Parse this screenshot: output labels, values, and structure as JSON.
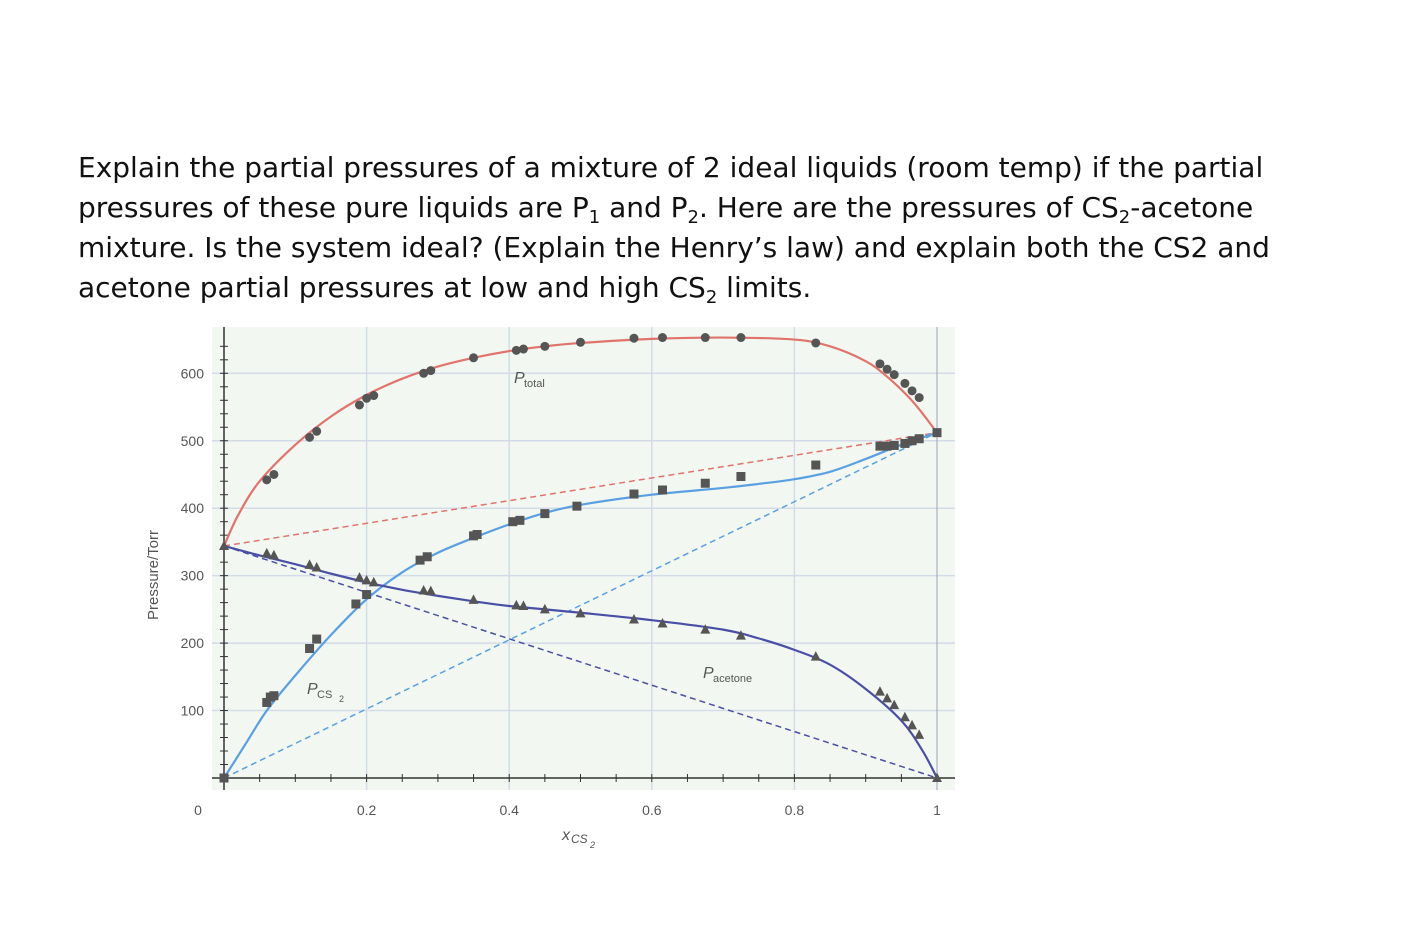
{
  "question": {
    "l1a": "Explain the partial pressures of a mixture of 2 ideal liquids (room temp) if the partial",
    "l2a": "pressures of these pure liquids are P",
    "l2s1": "1",
    "l2b": " and P",
    "l2s2": "2",
    "l2c": ".  Here are the pressures of CS",
    "l2s3": "2",
    "l2d": "-acetone",
    "l3": "mixture. Is the system ideal? (Explain the Henry’s law) and explain both the CS2 and",
    "l4a": "acetone partial pressures at low and high CS",
    "l4s": "2",
    "l4b": " limits."
  },
  "chart_data": {
    "type": "scatter",
    "xlabel": {
      "main": "x",
      "sub": "CS",
      "subsub": "2"
    },
    "ylabel": "Pressure/Torr",
    "xlim": [
      0,
      1
    ],
    "ylim": [
      0,
      650
    ],
    "x_ticks": [
      "0",
      "0.2",
      "0.4",
      "0.6",
      "0.8",
      "1"
    ],
    "x_tick_values": [
      0,
      0.2,
      0.4,
      0.6,
      0.8,
      1
    ],
    "y_ticks": [
      "100",
      "200",
      "300",
      "400",
      "500",
      "600"
    ],
    "y_tick_values": [
      100,
      200,
      300,
      400,
      500,
      600
    ],
    "grid": true,
    "colors": {
      "total": "#e0736b",
      "cs2": "#5b9fe3",
      "acetone": "#4a4fa6",
      "markers": "#555555",
      "plot_bg": "#f2f8f1",
      "grid": "#d3dbe8",
      "axis": "#333333",
      "text": "#555555"
    },
    "series": [
      {
        "name": "P_total",
        "label_main": "P",
        "label_sub": "total",
        "marker": "circle",
        "curve": [
          [
            0,
            344
          ],
          [
            0.02,
            390
          ],
          [
            0.05,
            440
          ],
          [
            0.1,
            494
          ],
          [
            0.15,
            536
          ],
          [
            0.2,
            568
          ],
          [
            0.25,
            592
          ],
          [
            0.3,
            610
          ],
          [
            0.35,
            623
          ],
          [
            0.4,
            633
          ],
          [
            0.45,
            640
          ],
          [
            0.5,
            645
          ],
          [
            0.6,
            651
          ],
          [
            0.7,
            653
          ],
          [
            0.8,
            650
          ],
          [
            0.85,
            640
          ],
          [
            0.9,
            618
          ],
          [
            0.93,
            595
          ],
          [
            0.96,
            565
          ],
          [
            0.98,
            540
          ],
          [
            1,
            512
          ]
        ],
        "points": [
          [
            0.06,
            442
          ],
          [
            0.07,
            450
          ],
          [
            0.12,
            505
          ],
          [
            0.13,
            514
          ],
          [
            0.19,
            553
          ],
          [
            0.2,
            563
          ],
          [
            0.21,
            567
          ],
          [
            0.28,
            600
          ],
          [
            0.29,
            604
          ],
          [
            0.35,
            623
          ],
          [
            0.41,
            634
          ],
          [
            0.42,
            636
          ],
          [
            0.45,
            640
          ],
          [
            0.5,
            646
          ],
          [
            0.575,
            652
          ],
          [
            0.615,
            653
          ],
          [
            0.675,
            653
          ],
          [
            0.725,
            653
          ],
          [
            0.83,
            645
          ],
          [
            0.92,
            614
          ],
          [
            0.93,
            606
          ],
          [
            0.94,
            598
          ],
          [
            0.955,
            585
          ],
          [
            0.965,
            574
          ],
          [
            0.975,
            564
          ]
        ]
      },
      {
        "name": "P_CS2",
        "label_main": "P",
        "label_sub": "CS",
        "label_subsub": "2",
        "marker": "square",
        "curve": [
          [
            0,
            0
          ],
          [
            0.03,
            50
          ],
          [
            0.06,
            100
          ],
          [
            0.1,
            152
          ],
          [
            0.15,
            212
          ],
          [
            0.2,
            265
          ],
          [
            0.25,
            305
          ],
          [
            0.3,
            334
          ],
          [
            0.35,
            356
          ],
          [
            0.4,
            376
          ],
          [
            0.45,
            393
          ],
          [
            0.5,
            405
          ],
          [
            0.6,
            420
          ],
          [
            0.7,
            430
          ],
          [
            0.75,
            436
          ],
          [
            0.8,
            443
          ],
          [
            0.85,
            454
          ],
          [
            0.9,
            473
          ],
          [
            0.95,
            494
          ],
          [
            1,
            512
          ]
        ],
        "points": [
          [
            0,
            0
          ],
          [
            0.06,
            112
          ],
          [
            0.065,
            120
          ],
          [
            0.07,
            122
          ],
          [
            0.12,
            192
          ],
          [
            0.13,
            206
          ],
          [
            0.185,
            258
          ],
          [
            0.2,
            272
          ],
          [
            0.275,
            323
          ],
          [
            0.285,
            328
          ],
          [
            0.35,
            359
          ],
          [
            0.355,
            361
          ],
          [
            0.405,
            380
          ],
          [
            0.415,
            382
          ],
          [
            0.45,
            392
          ],
          [
            0.495,
            403
          ],
          [
            0.575,
            421
          ],
          [
            0.615,
            427
          ],
          [
            0.675,
            437
          ],
          [
            0.725,
            447
          ],
          [
            0.83,
            464
          ],
          [
            0.92,
            492
          ],
          [
            0.93,
            492
          ],
          [
            0.94,
            493
          ],
          [
            0.955,
            496
          ],
          [
            0.965,
            500
          ],
          [
            0.975,
            503
          ],
          [
            1,
            512
          ]
        ]
      },
      {
        "name": "P_acetone",
        "label_main": "P",
        "label_sub": "acetone",
        "marker": "triangle",
        "curve": [
          [
            0,
            344
          ],
          [
            0.05,
            330
          ],
          [
            0.1,
            317
          ],
          [
            0.15,
            303
          ],
          [
            0.2,
            290
          ],
          [
            0.25,
            279
          ],
          [
            0.3,
            270
          ],
          [
            0.35,
            262
          ],
          [
            0.4,
            255
          ],
          [
            0.5,
            245
          ],
          [
            0.6,
            234
          ],
          [
            0.7,
            220
          ],
          [
            0.75,
            207
          ],
          [
            0.8,
            190
          ],
          [
            0.85,
            168
          ],
          [
            0.9,
            132
          ],
          [
            0.95,
            85
          ],
          [
            0.98,
            40
          ],
          [
            1,
            0
          ]
        ],
        "points": [
          [
            0,
            344
          ],
          [
            0.06,
            333
          ],
          [
            0.07,
            330
          ],
          [
            0.12,
            316
          ],
          [
            0.13,
            312
          ],
          [
            0.19,
            297
          ],
          [
            0.2,
            293
          ],
          [
            0.21,
            290
          ],
          [
            0.28,
            278
          ],
          [
            0.29,
            277
          ],
          [
            0.35,
            264
          ],
          [
            0.41,
            256
          ],
          [
            0.42,
            255
          ],
          [
            0.45,
            250
          ],
          [
            0.5,
            244
          ],
          [
            0.575,
            235
          ],
          [
            0.615,
            229
          ],
          [
            0.675,
            220
          ],
          [
            0.725,
            211
          ],
          [
            0.83,
            180
          ],
          [
            0.92,
            128
          ],
          [
            0.93,
            118
          ],
          [
            0.94,
            108
          ],
          [
            0.955,
            90
          ],
          [
            0.965,
            78
          ],
          [
            0.975,
            64
          ],
          [
            1,
            0
          ]
        ]
      }
    ],
    "ideal_lines": [
      {
        "name": "ideal total",
        "from": [
          0,
          344
        ],
        "to": [
          1,
          512
        ]
      },
      {
        "name": "ideal CS2",
        "from": [
          0,
          0
        ],
        "to": [
          1,
          512
        ]
      },
      {
        "name": "ideal acetone",
        "from": [
          0,
          344
        ],
        "to": [
          1,
          0
        ]
      }
    ]
  }
}
